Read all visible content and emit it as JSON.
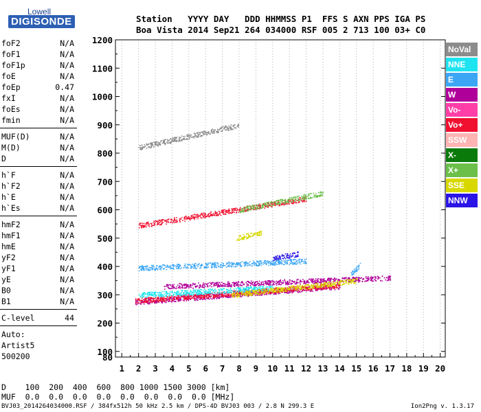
{
  "logo": {
    "top": "Lowell",
    "main": "DIGISONDE"
  },
  "header": {
    "line1": "Station   YYYY DAY   DDD HHMMSS P1  FFS S AXN PPS IGA PS",
    "line2": "Boa Vista 2014 Sep21 264 034000 RSF 005 2 713 100 03+ C0"
  },
  "params_group1": [
    {
      "name": "foF2",
      "value": "N/A"
    },
    {
      "name": "foF1",
      "value": "N/A"
    },
    {
      "name": "foF1p",
      "value": "N/A"
    },
    {
      "name": "foE",
      "value": "N/A"
    },
    {
      "name": "foEp",
      "value": "0.47"
    },
    {
      "name": "fxI",
      "value": "N/A"
    },
    {
      "name": "foEs",
      "value": "N/A"
    },
    {
      "name": "fmin",
      "value": "N/A"
    }
  ],
  "params_group2": [
    {
      "name": "MUF(D)",
      "value": "N/A"
    },
    {
      "name": "M(D)",
      "value": "N/A"
    },
    {
      "name": "D",
      "value": "N/A"
    }
  ],
  "params_group3": [
    {
      "name": "h`F",
      "value": "N/A"
    },
    {
      "name": "h`F2",
      "value": "N/A"
    },
    {
      "name": "h`E",
      "value": "N/A"
    },
    {
      "name": "h`Es",
      "value": "N/A"
    }
  ],
  "params_group4": [
    {
      "name": "hmF2",
      "value": "N/A"
    },
    {
      "name": "hmF1",
      "value": "N/A"
    },
    {
      "name": "hmE",
      "value": "N/A"
    },
    {
      "name": "yF2",
      "value": "N/A"
    },
    {
      "name": "yF1",
      "value": "N/A"
    },
    {
      "name": "yE",
      "value": "N/A"
    },
    {
      "name": "B0",
      "value": "N/A"
    },
    {
      "name": "B1",
      "value": "N/A"
    }
  ],
  "clevel": {
    "name": "C-level",
    "value": "44"
  },
  "auto": {
    "line1": "Auto:",
    "line2": "Artist5",
    "line3": "500200"
  },
  "legend": [
    {
      "label": "NoVal",
      "color": "#8c8c8c"
    },
    {
      "label": "NNE",
      "color": "#1ee3f0"
    },
    {
      "label": "E",
      "color": "#3ca6f5"
    },
    {
      "label": "W",
      "color": "#b0009a"
    },
    {
      "label": "Vo-",
      "color": "#ff3fa8"
    },
    {
      "label": "Vo+",
      "color": "#f01030"
    },
    {
      "label": "SSW",
      "color": "#ffb4b4"
    },
    {
      "label": "X-",
      "color": "#0a7a0a"
    },
    {
      "label": "X+",
      "color": "#6cc04a"
    },
    {
      "label": "SSE",
      "color": "#d8d800"
    },
    {
      "label": "NNW",
      "color": "#2a14e6"
    }
  ],
  "bottom": {
    "d_line": "D    100  200  400  600  800 1000 1500 3000 [km]",
    "muf_line": "MUF  0.0  0.0  0.0  0.0  0.0  0.0  0.0  0.0 [MHz]",
    "footer": "BVJ03_2014264034000.RSF / 384fx512h 50 kHz 2.5 km / DPS-4D BVJ03 003 / 2.8 N 299.3 E",
    "version": "Ion2Png v. 1.3.17"
  },
  "chart_data": {
    "type": "scatter",
    "title": "",
    "xlabel": "",
    "ylabel": "",
    "x_axis": {
      "unit": "MHz",
      "range": [
        1,
        20
      ],
      "ticks": [
        1,
        2,
        3,
        4,
        5,
        6,
        7,
        8,
        9,
        10,
        11,
        12,
        13,
        14,
        15,
        16,
        17,
        18,
        19,
        20
      ]
    },
    "y_axis": {
      "unit": "km",
      "range": [
        80,
        1200
      ],
      "ticks": [
        80,
        100,
        200,
        300,
        400,
        500,
        600,
        700,
        800,
        900,
        1000,
        1100,
        1200
      ]
    },
    "grid": "dotted vertical lines at integer MHz",
    "legend_position": "right",
    "series": [
      {
        "name": "W",
        "traces": [
          {
            "f0": 1.8,
            "f1": 14,
            "h0": 275,
            "h1": 330
          },
          {
            "f0": 3.5,
            "f1": 17,
            "h0": 330,
            "h1": 360
          }
        ]
      },
      {
        "name": "Vo+",
        "traces": [
          {
            "f0": 1.8,
            "f1": 14,
            "h0": 280,
            "h1": 335
          },
          {
            "f0": 2,
            "f1": 12,
            "h0": 545,
            "h1": 640
          }
        ]
      },
      {
        "name": "E",
        "traces": [
          {
            "f0": 2,
            "f1": 12,
            "h0": 395,
            "h1": 420
          },
          {
            "f0": 14.6,
            "f1": 15.2,
            "h0": 370,
            "h1": 405
          }
        ]
      },
      {
        "name": "NNE",
        "traces": [
          {
            "f0": 2,
            "f1": 10,
            "h0": 300,
            "h1": 325
          }
        ]
      },
      {
        "name": "SSE",
        "traces": [
          {
            "f0": 7.5,
            "f1": 15,
            "h0": 300,
            "h1": 350
          },
          {
            "f0": 7.8,
            "f1": 9.3,
            "h0": 500,
            "h1": 520
          }
        ]
      },
      {
        "name": "NNW",
        "traces": [
          {
            "f0": 10,
            "f1": 11.5,
            "h0": 430,
            "h1": 445
          }
        ]
      },
      {
        "name": "X+",
        "traces": [
          {
            "f0": 8,
            "f1": 13,
            "h0": 600,
            "h1": 660
          }
        ]
      },
      {
        "name": "NoVal",
        "traces": [
          {
            "f0": 2,
            "f1": 8,
            "h0": 820,
            "h1": 900
          }
        ]
      }
    ]
  }
}
